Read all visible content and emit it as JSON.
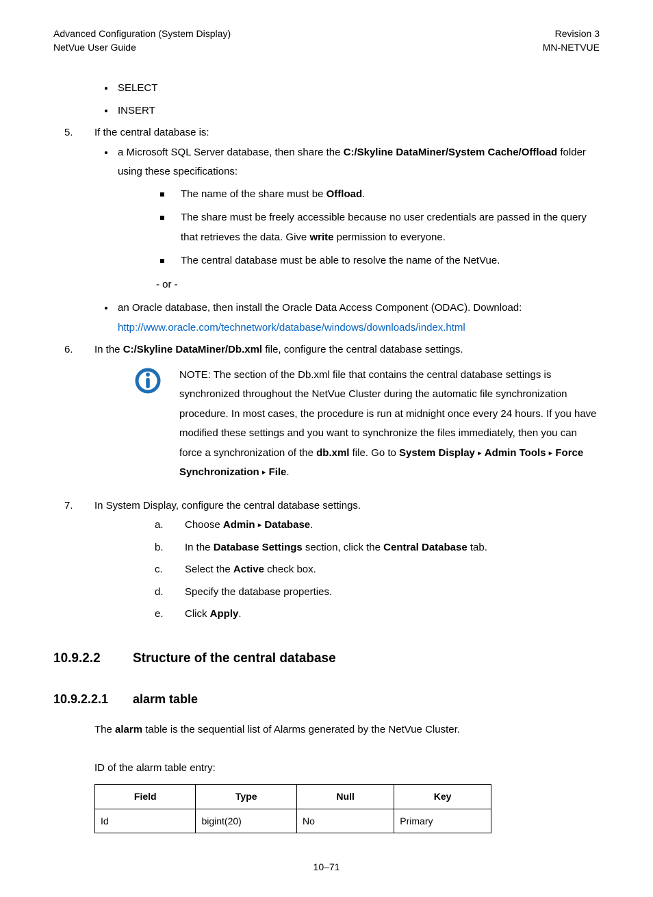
{
  "header": {
    "left1": "Advanced Configuration (System Display)",
    "left2": "NetVue User Guide",
    "right1": "Revision 3",
    "right2": "MN-NETVUE"
  },
  "top_bullets": [
    "SELECT",
    "INSERT"
  ],
  "step5": {
    "marker": "5.",
    "lead": "If the central database is:",
    "sql_intro_pre": "a Microsoft SQL Server database, then share the ",
    "sql_path": "C:/Skyline DataMiner/System Cache/Offload",
    "sql_intro_post": " folder using these specifications:",
    "sq1_pre": "The name of the share must be ",
    "sq1_b": "Offload",
    "sq1_post": ".",
    "sq2_pre": "The share must be freely accessible because no user credentials are passed in the query that retrieves the data. Give ",
    "sq2_b": "write",
    "sq2_post": " permission to everyone.",
    "sq3": "The central database must be able to resolve the name of the NetVue.",
    "or": "- or -",
    "oracle_intro": "an Oracle database, then install the Oracle Data Access Component (ODAC). Download: ",
    "oracle_link": "http://www.oracle.com/technetwork/database/windows/downloads/index.html"
  },
  "step6": {
    "marker": "6.",
    "pre": "In the ",
    "path": "C:/Skyline DataMiner/Db.xml",
    "post": " file, configure the central database settings."
  },
  "note": {
    "pre": "NOTE:  The section of the Db.xml file that contains the central database settings is synchronized throughout the NetVue Cluster during the automatic file synchronization procedure. In most cases, the procedure is run at midnight once every 24 hours. If you have modified these settings and you want to synchronize the files immediately, then you can force a synchronization of the ",
    "b1": "db.xml",
    "mid1": " file. Go to ",
    "b2": "System Display",
    "b3": "Admin Tools",
    "b4": "Force Synchronization",
    "b5": "File",
    "post": "."
  },
  "step7": {
    "marker": "7.",
    "lead": "In System Display, configure the central database settings.",
    "a_marker": "a.",
    "a_pre": "Choose ",
    "a_b1": "Admin",
    "a_b2": "Database",
    "a_post": ".",
    "b_marker": "b.",
    "b_pre": "In the ",
    "b_b1": "Database Settings",
    "b_mid": " section, click the ",
    "b_b2": "Central Database",
    "b_post": " tab.",
    "c_marker": "c.",
    "c_pre": "Select the ",
    "c_b": "Active",
    "c_post": " check box.",
    "d_marker": "d.",
    "d_text": "Specify the database properties.",
    "e_marker": "e.",
    "e_pre": "Click ",
    "e_b": "Apply",
    "e_post": "."
  },
  "sec1": {
    "num": "10.9.2.2",
    "title": "Structure of the central database"
  },
  "sec2": {
    "num": "10.9.2.2.1",
    "title": "alarm table"
  },
  "alarm_intro_pre": "The ",
  "alarm_intro_b": "alarm",
  "alarm_intro_post": " table is the sequential list of Alarms generated by the NetVue Cluster.",
  "alarm_id_caption": "ID of the alarm table entry:",
  "table": {
    "headers": [
      "Field",
      "Type",
      "Null",
      "Key"
    ],
    "row": [
      "Id",
      "bigint(20)",
      "No",
      "Primary"
    ],
    "col_widths": [
      "150px",
      "145px",
      "145px",
      "140px"
    ]
  },
  "footer": "10–71",
  "colors": {
    "link": "#0563c1",
    "icon": "#1f6fb5"
  },
  "arrow_char": "▸"
}
